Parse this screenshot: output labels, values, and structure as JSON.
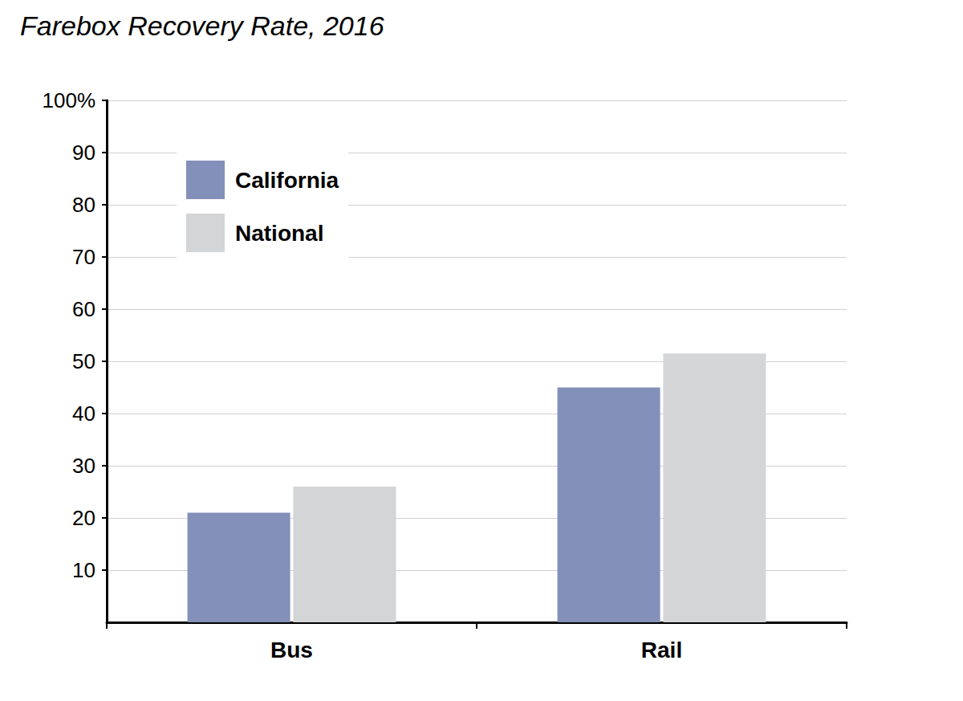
{
  "chart_data": {
    "type": "bar",
    "title": "Farebox Recovery Rate, 2016",
    "categories": [
      "Bus",
      "Rail"
    ],
    "series": [
      {
        "name": "California",
        "color": "#8390b9",
        "values": [
          21,
          45
        ]
      },
      {
        "name": "National",
        "color": "#d4d5d7",
        "values": [
          26,
          51.5
        ]
      }
    ],
    "ylim": [
      0,
      100
    ],
    "yticks": [
      10,
      20,
      30,
      40,
      50,
      60,
      70,
      80,
      90,
      {
        "value": 100,
        "label": "100%"
      }
    ],
    "grid": true,
    "legend": "upper left"
  }
}
